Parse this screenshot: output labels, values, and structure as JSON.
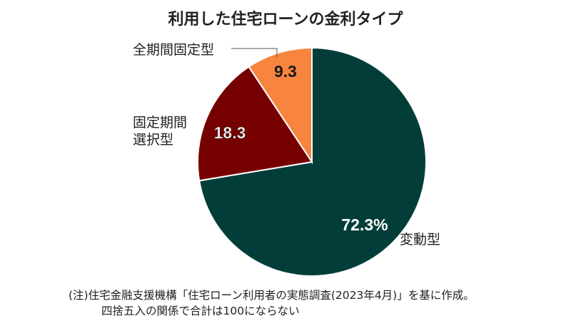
{
  "chart_data": {
    "type": "pie",
    "title": "利用した住宅ローンの金利タイプ",
    "unit": "%",
    "slices": [
      {
        "label": "変動型",
        "value": 72.3,
        "value_label": "72.3%",
        "color": "#033d3a",
        "text_color": "#ffffff"
      },
      {
        "label_lines": [
          "固定期間",
          "選択型"
        ],
        "label": "固定期間選択型",
        "value": 18.3,
        "value_label": "18.3",
        "color": "#760000",
        "text_color": "#ffffff"
      },
      {
        "label": "全期間固定型",
        "value": 9.3,
        "value_label": "9.3",
        "color": "#f7843f",
        "text_color": "#1a1a1a"
      }
    ],
    "start": "top",
    "direction": "clockwise"
  },
  "notes": {
    "line1": "(注)住宅金融支援機構「住宅ローン利用者の実態調査(2023年4月)」を基に作成。",
    "line2": "四捨五入の関係で合計は100にならない"
  }
}
